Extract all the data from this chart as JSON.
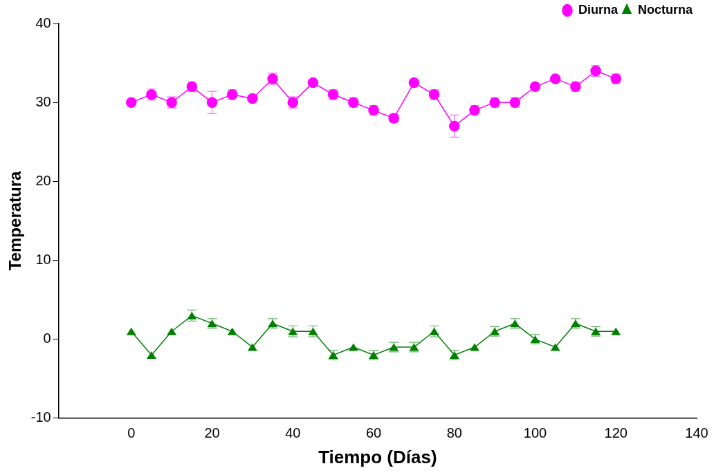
{
  "chart_data": {
    "type": "line",
    "xlabel": "Tiempo (Días)",
    "ylabel": "Temperatura",
    "x": [
      0,
      5,
      10,
      15,
      20,
      25,
      30,
      35,
      40,
      45,
      50,
      55,
      60,
      65,
      70,
      75,
      80,
      85,
      90,
      95,
      100,
      105,
      110,
      115,
      120
    ],
    "xlim": [
      -18,
      140
    ],
    "xticks": [
      0,
      20,
      40,
      60,
      80,
      100,
      120,
      140
    ],
    "ylim": [
      -10,
      40
    ],
    "yticks": [
      -10,
      0,
      10,
      20,
      30,
      40
    ],
    "grid": false,
    "legend": "top right",
    "line_style": "solid",
    "series": [
      {
        "name": "Diurna",
        "color": "#ff00ff",
        "marker": "circle",
        "values": [
          30,
          31,
          30,
          32,
          30,
          31,
          30.5,
          33,
          30,
          32.5,
          31,
          30,
          29,
          28,
          32.5,
          31,
          27,
          29,
          30,
          30,
          32,
          33,
          32,
          34,
          33
        ],
        "errors": [
          null,
          0.7,
          0.7,
          0.6,
          1.4,
          0.6,
          null,
          0.7,
          0.7,
          null,
          0.6,
          0.6,
          0.6,
          0.5,
          null,
          0.6,
          1.4,
          0.6,
          0.6,
          0.6,
          null,
          null,
          0.6,
          0.7,
          0.6
        ]
      },
      {
        "name": "Nocturna",
        "color": "#008000",
        "marker": "triangle",
        "values": [
          1,
          -2,
          1,
          3,
          2,
          1,
          -1,
          2,
          1,
          1,
          -2,
          -1,
          -2,
          -1,
          -1,
          1,
          -2,
          -1,
          1,
          2,
          0,
          -1,
          2,
          1,
          1
        ],
        "errors": [
          null,
          null,
          null,
          0.7,
          0.6,
          null,
          null,
          0.6,
          0.7,
          0.7,
          0.6,
          null,
          0.6,
          0.6,
          0.6,
          0.7,
          0.6,
          null,
          0.6,
          0.6,
          0.6,
          null,
          0.6,
          0.6,
          null
        ]
      }
    ]
  }
}
